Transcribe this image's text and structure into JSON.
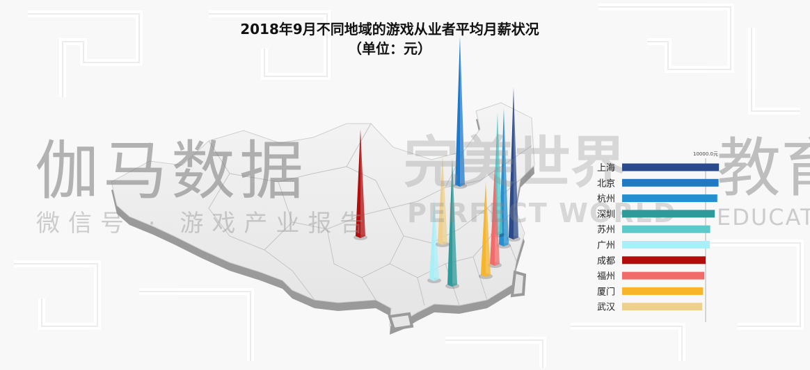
{
  "title_line1": "2018年9月不同地域的游戏从业者平均月薪状况",
  "title_line2": "（单位：元）",
  "watermarks": {
    "cn_main": "伽马数据",
    "cn_sub": "微信号 · 游戏产业报告",
    "pw_main": "完美世界",
    "pw_sub": "PERFECT WORLD",
    "edu_main": "教育",
    "edu_sub": "EDUCAT"
  },
  "chart_data": {
    "type": "bar",
    "orientation": "horizontal",
    "title": "2018年9月不同地域的游戏从业者平均月薪状况",
    "subtitle": "（单位：元）",
    "scale_label": "10000.0元",
    "reference_value": 10000,
    "categories": [
      "上海",
      "北京",
      "杭州",
      "深圳",
      "苏州",
      "广州",
      "成都",
      "福州",
      "厦门",
      "武汉"
    ],
    "values": [
      11600,
      11550,
      11400,
      11100,
      10550,
      10500,
      10000,
      9850,
      9700,
      9600
    ],
    "colors": [
      "#2b4a8b",
      "#1f78c8",
      "#2490d0",
      "#2e9a9a",
      "#5ccaca",
      "#a8f0f8",
      "#b30c0c",
      "#f26b6b",
      "#f7b52a",
      "#eed08d"
    ]
  },
  "map_spikes": [
    {
      "city": "上海",
      "color": "#2b4a8b"
    },
    {
      "city": "北京",
      "color": "#1f78c8"
    },
    {
      "city": "杭州",
      "color": "#2490d0"
    },
    {
      "city": "深圳",
      "color": "#2e9a9a"
    },
    {
      "city": "苏州",
      "color": "#5ccaca"
    },
    {
      "city": "广州",
      "color": "#a8f0f8"
    },
    {
      "city": "成都",
      "color": "#b30c0c"
    },
    {
      "city": "福州",
      "color": "#f26b6b"
    },
    {
      "city": "厦门",
      "color": "#f7b52a"
    },
    {
      "city": "武汉",
      "color": "#eed08d"
    }
  ]
}
